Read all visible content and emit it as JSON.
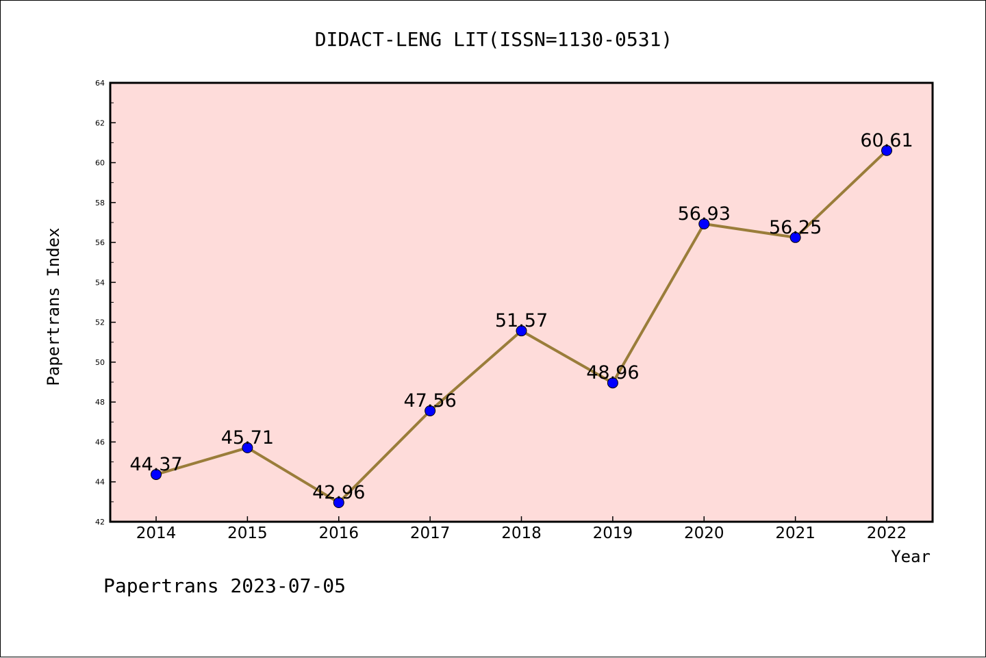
{
  "chart_data": {
    "type": "line",
    "title": "DIDACT-LENG LIT(ISSN=1130-0531)",
    "xlabel": "Year",
    "ylabel": "Papertrans Index",
    "footer": "Papertrans 2023-07-05",
    "categories": [
      "2014",
      "2015",
      "2016",
      "2017",
      "2018",
      "2019",
      "2020",
      "2021",
      "2022"
    ],
    "series": [
      {
        "values": [
          44.37,
          45.71,
          42.96,
          47.56,
          51.57,
          48.96,
          56.93,
          56.25,
          60.61
        ],
        "labels": [
          "44.37",
          "45.71",
          "42.96",
          "47.56",
          "51.57",
          "48.96",
          "56.93",
          "56.25",
          "60.61"
        ]
      }
    ],
    "ylim": [
      42,
      64
    ],
    "yticks": [
      "42",
      "44",
      "46",
      "48",
      "50",
      "52",
      "54",
      "56",
      "58",
      "60",
      "62",
      "64"
    ],
    "grid": false,
    "colors": {
      "plot_background": "#fedcda",
      "line": "#9a7d3a",
      "marker": "#0000ff"
    }
  }
}
